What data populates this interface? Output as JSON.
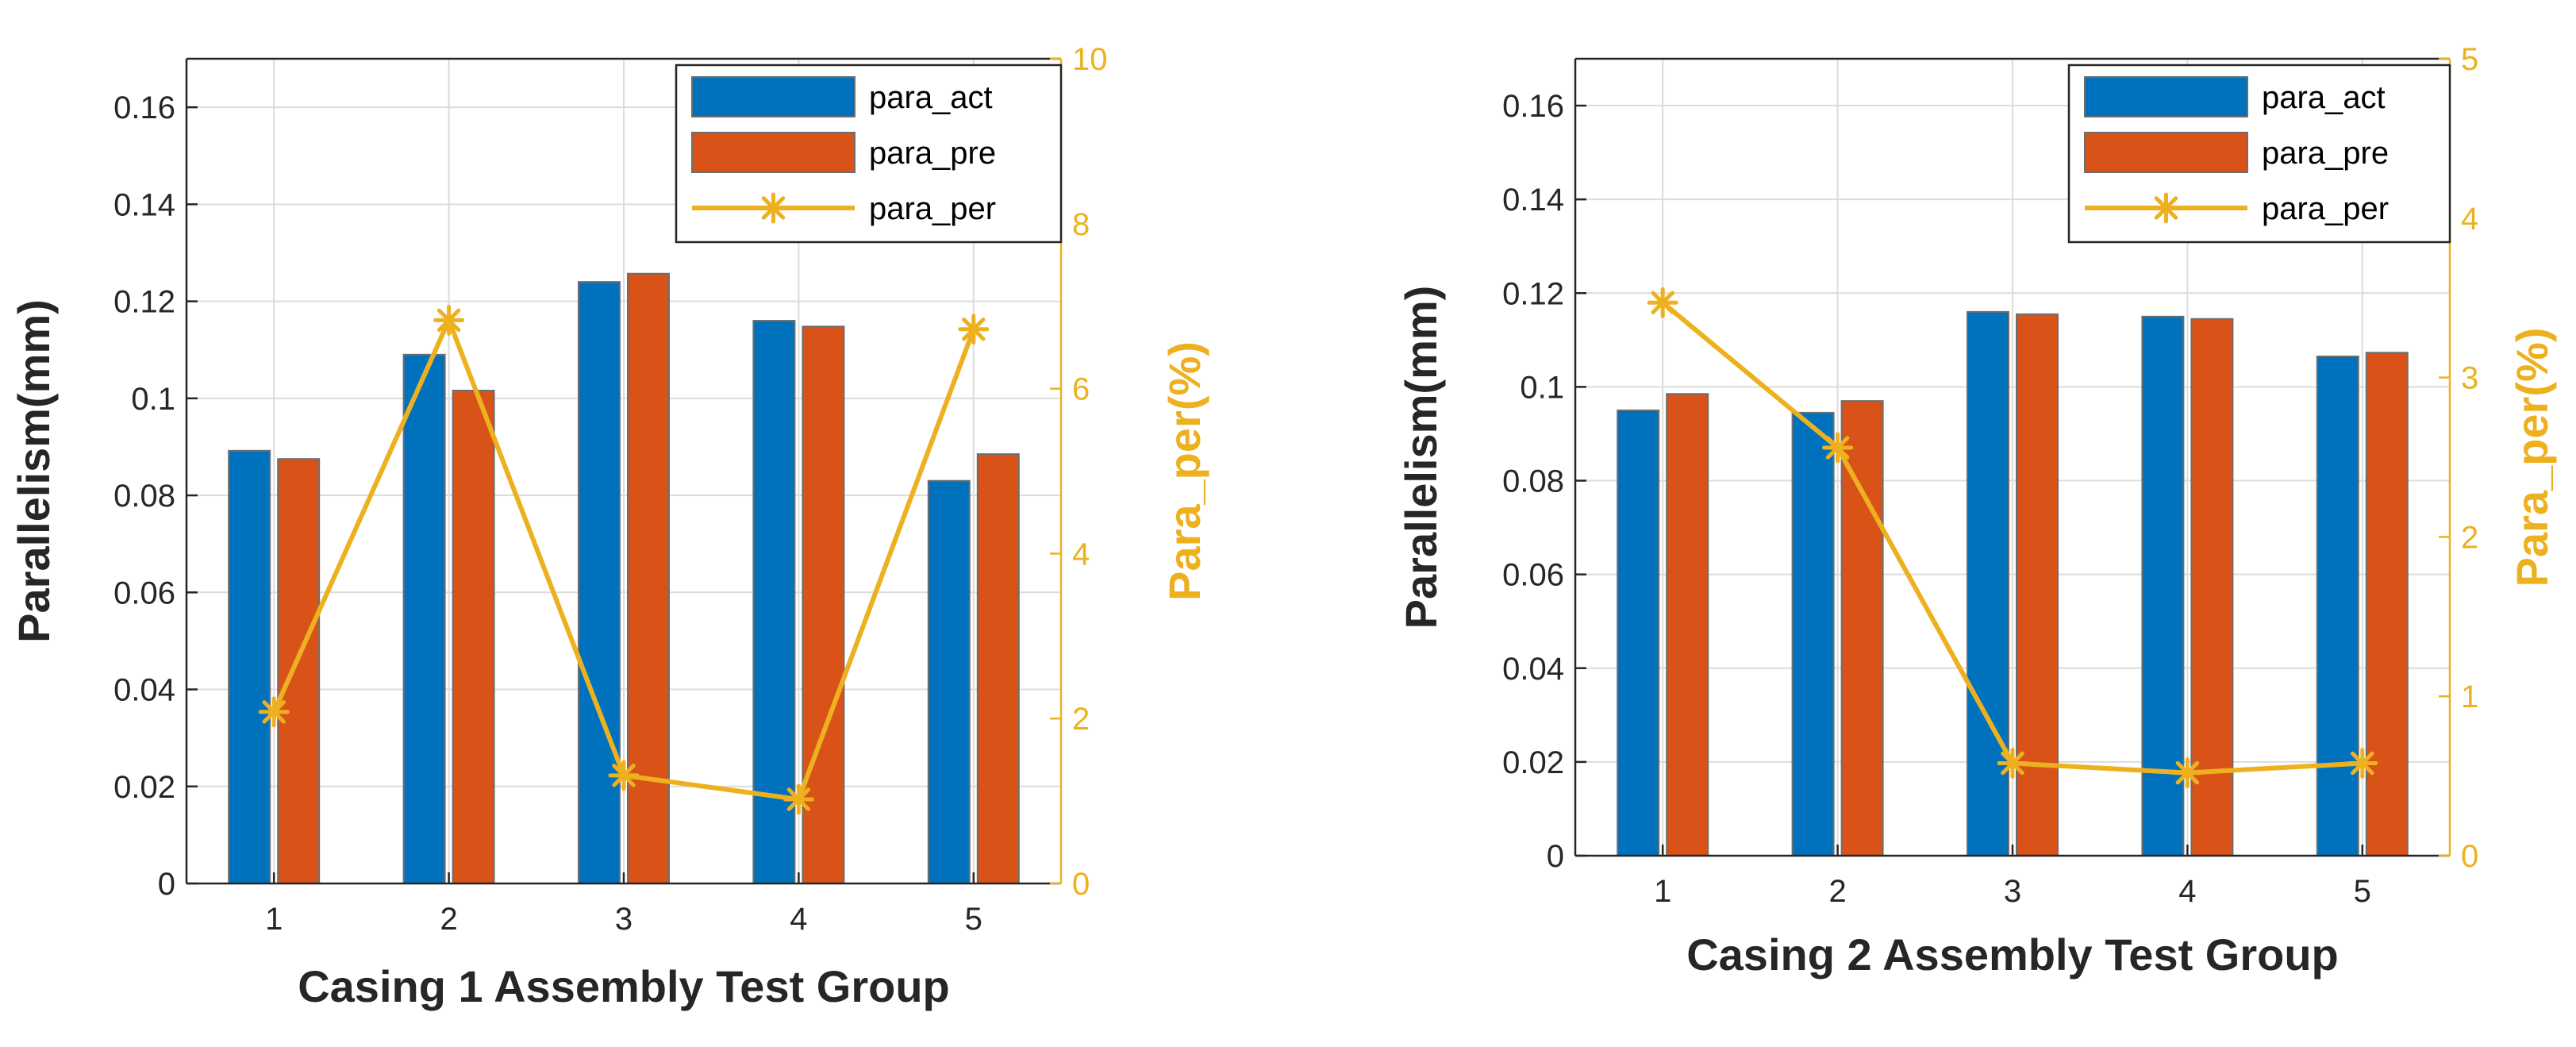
{
  "chart_data": [
    {
      "type": "bar",
      "title": "",
      "xlabel": "Casing 1 Assembly Test Group",
      "ylabel": "Parallelism(mm)",
      "y2label": "Para_per(%)",
      "categories": [
        "1",
        "2",
        "3",
        "4",
        "5"
      ],
      "ylim": [
        0,
        0.17
      ],
      "yticks": [
        "0",
        "0.02",
        "0.04",
        "0.06",
        "0.08",
        "0.1",
        "0.12",
        "0.14",
        "0.16"
      ],
      "y2lim": [
        0,
        10
      ],
      "y2ticks": [
        "0",
        "2",
        "4",
        "6",
        "8",
        "10"
      ],
      "grid": true,
      "legend_position": "top-right",
      "series": [
        {
          "name": "para_act",
          "kind": "bar",
          "axis": "left",
          "color": "#0072BD",
          "values": [
            0.0892,
            0.109,
            0.124,
            0.116,
            0.083
          ]
        },
        {
          "name": "para_pre",
          "kind": "bar",
          "axis": "left",
          "color": "#D95319",
          "values": [
            0.0875,
            0.1016,
            0.1257,
            0.1148,
            0.0885
          ]
        },
        {
          "name": "para_per",
          "kind": "line",
          "axis": "right",
          "marker": "asterisk",
          "color": "#EDB120",
          "values": [
            2.08,
            6.83,
            1.31,
            1.02,
            6.72
          ]
        }
      ]
    },
    {
      "type": "bar",
      "title": "",
      "xlabel": "Casing 2 Assembly Test Group",
      "ylabel": "Parallelism(mm)",
      "y2label": "Para_per(%)",
      "categories": [
        "1",
        "2",
        "3",
        "4",
        "5"
      ],
      "ylim": [
        0,
        0.17
      ],
      "yticks": [
        "0",
        "0.02",
        "0.04",
        "0.06",
        "0.08",
        "0.1",
        "0.12",
        "0.14",
        "0.16"
      ],
      "y2lim": [
        0,
        5
      ],
      "y2ticks": [
        "0",
        "1",
        "2",
        "3",
        "4",
        "5"
      ],
      "grid": true,
      "legend_position": "top-right",
      "series": [
        {
          "name": "para_act",
          "kind": "bar",
          "axis": "left",
          "color": "#0072BD",
          "values": [
            0.095,
            0.0945,
            0.116,
            0.115,
            0.1065
          ]
        },
        {
          "name": "para_pre",
          "kind": "bar",
          "axis": "left",
          "color": "#D95319",
          "values": [
            0.0985,
            0.097,
            0.1155,
            0.1145,
            0.1073
          ]
        },
        {
          "name": "para_per",
          "kind": "line",
          "axis": "right",
          "marker": "asterisk",
          "color": "#EDB120",
          "values": [
            3.47,
            2.56,
            0.58,
            0.52,
            0.58
          ]
        }
      ]
    }
  ]
}
